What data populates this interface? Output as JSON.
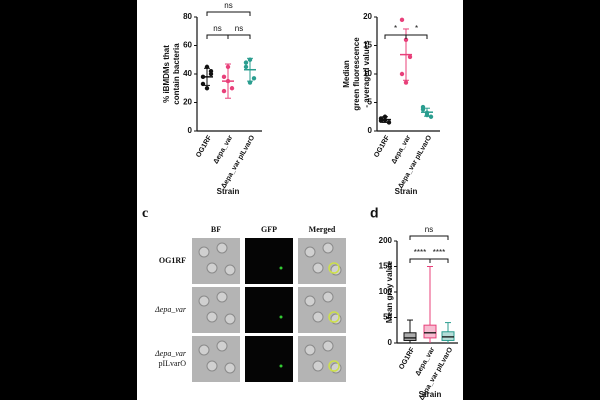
{
  "chart_data": [
    {
      "type": "dot",
      "ylabel": [
        "% iBMDMs that",
        "contain bacteria"
      ],
      "xlabel": "Strain",
      "categories": [
        "OG1RF",
        "Δepa_var",
        "Δepa_var pILvarO"
      ],
      "colors": [
        "#111111",
        "#e8407a",
        "#2a9d8f"
      ],
      "points": [
        [
          38,
          45,
          40,
          33,
          30,
          42
        ],
        [
          38,
          45,
          30,
          28,
          35
        ],
        [
          45,
          50,
          37,
          48,
          34
        ]
      ],
      "means": [
        38,
        35,
        43
      ],
      "errors": [
        6,
        12,
        8
      ],
      "ylim": [
        0,
        80
      ],
      "yticks": [
        0,
        20,
        40,
        60,
        80
      ],
      "comparisons": [
        {
          "pair": [
            0,
            1
          ],
          "label": "ns"
        },
        {
          "pair": [
            1,
            2
          ],
          "label": "ns"
        },
        {
          "pair": [
            0,
            2
          ],
          "label": "ns"
        }
      ]
    },
    {
      "type": "dot",
      "ylabel": [
        "Median",
        "green fluorescence",
        "- averaged values"
      ],
      "xlabel": "Strain",
      "categories": [
        "OG1RF",
        "Δepa_var",
        "Δepa_var pILvarO"
      ],
      "colors": [
        "#111111",
        "#e8407a",
        "#2a9d8f"
      ],
      "points": [
        [
          1.8,
          2.5,
          1.5,
          2.2,
          1.9
        ],
        [
          19.5,
          16,
          13,
          10,
          8.5
        ],
        [
          3.8,
          3.2,
          2.5,
          4.2,
          2.8
        ]
      ],
      "means": [
        2,
        13.4,
        3.3
      ],
      "errors": [
        0.5,
        4.5,
        0.7
      ],
      "ylim": [
        0,
        20
      ],
      "yticks": [
        0,
        5,
        10,
        15,
        20
      ],
      "comparisons": [
        {
          "pair": [
            0,
            1
          ],
          "label": "*"
        },
        {
          "pair": [
            1,
            2
          ],
          "label": "*"
        }
      ]
    },
    {
      "type": "box",
      "panel": "d",
      "ylabel": [
        "Mean gray value"
      ],
      "xlabel": "Strain",
      "categories": [
        "OG1RF",
        "Δepa_var",
        "Δepa_var pILvarO"
      ],
      "colors": [
        "#111111",
        "#e8407a",
        "#2a9d8f"
      ],
      "boxes": [
        [
          0,
          5,
          10,
          20,
          45
        ],
        [
          0,
          10,
          20,
          35,
          150
        ],
        [
          0,
          5,
          12,
          22,
          40
        ]
      ],
      "ylim": [
        0,
        200
      ],
      "yticks": [
        0,
        50,
        100,
        150,
        200
      ],
      "comparisons": [
        {
          "pair": [
            0,
            1
          ],
          "label": "****"
        },
        {
          "pair": [
            1,
            2
          ],
          "label": "****"
        },
        {
          "pair": [
            0,
            2
          ],
          "label": "ns"
        }
      ]
    }
  ],
  "microscopy": {
    "panel": "c",
    "columns": [
      "BF",
      "GFP",
      "Merged"
    ],
    "rows": [
      [
        "OG1RF"
      ],
      [
        "Δepa_var"
      ],
      [
        "Δepa_var",
        "pILvarO"
      ]
    ]
  }
}
